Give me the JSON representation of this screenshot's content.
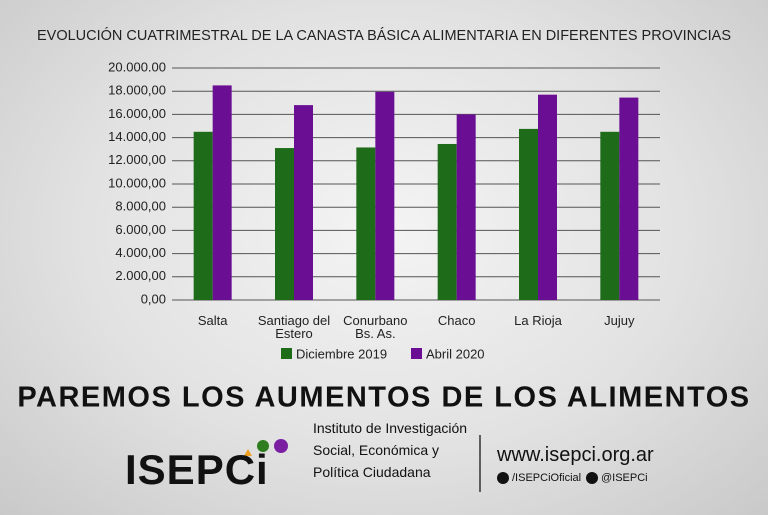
{
  "chart_data": {
    "type": "bar",
    "title": "EVOLUCIÓN CUATRIMESTRAL DE LA CANASTA BÁSICA ALIMENTARIA EN DIFERENTES PROVINCIAS",
    "categories": [
      "Salta",
      "Santiago del Estero",
      "Conurbano Bs. As.",
      "Chaco",
      "La Rioja",
      "Jujuy"
    ],
    "series": [
      {
        "name": "Diciembre 2019",
        "color": "#1e6b1a",
        "values": [
          14500,
          13100,
          13150,
          13450,
          14750,
          14500
        ]
      },
      {
        "name": "Abril 2020",
        "color": "#6a0f94",
        "values": [
          18500,
          16800,
          17950,
          16000,
          17700,
          17450
        ]
      }
    ],
    "ylim": [
      0,
      20000
    ],
    "yticks": [
      {
        "value": 0,
        "label": "0,00"
      },
      {
        "value": 2000,
        "label": "2.000,00"
      },
      {
        "value": 4000,
        "label": "4.000,00"
      },
      {
        "value": 6000,
        "label": "6.000,00"
      },
      {
        "value": 8000,
        "label": "8.000,00"
      },
      {
        "value": 10000,
        "label": "10.000,00"
      },
      {
        "value": 12000,
        "label": "12.000,00"
      },
      {
        "value": 14000,
        "label": "14.000,00"
      },
      {
        "value": 16000,
        "label": "16.000,00"
      },
      {
        "value": 18000,
        "label": "18.000,00"
      },
      {
        "value": 20000,
        "label": "20.000.00"
      }
    ],
    "grid": true
  },
  "banner": "PAREMOS LOS AUMENTOS DE LOS ALIMENTOS",
  "footer": {
    "logo": "ISEPCi",
    "institute": [
      "Instituto de Investigación",
      "Social, Económica y",
      "Política Ciudadana"
    ],
    "url": "www.isepci.org.ar",
    "facebook": "/ISEPCiOficial",
    "twitter": "@ISEPCi"
  }
}
